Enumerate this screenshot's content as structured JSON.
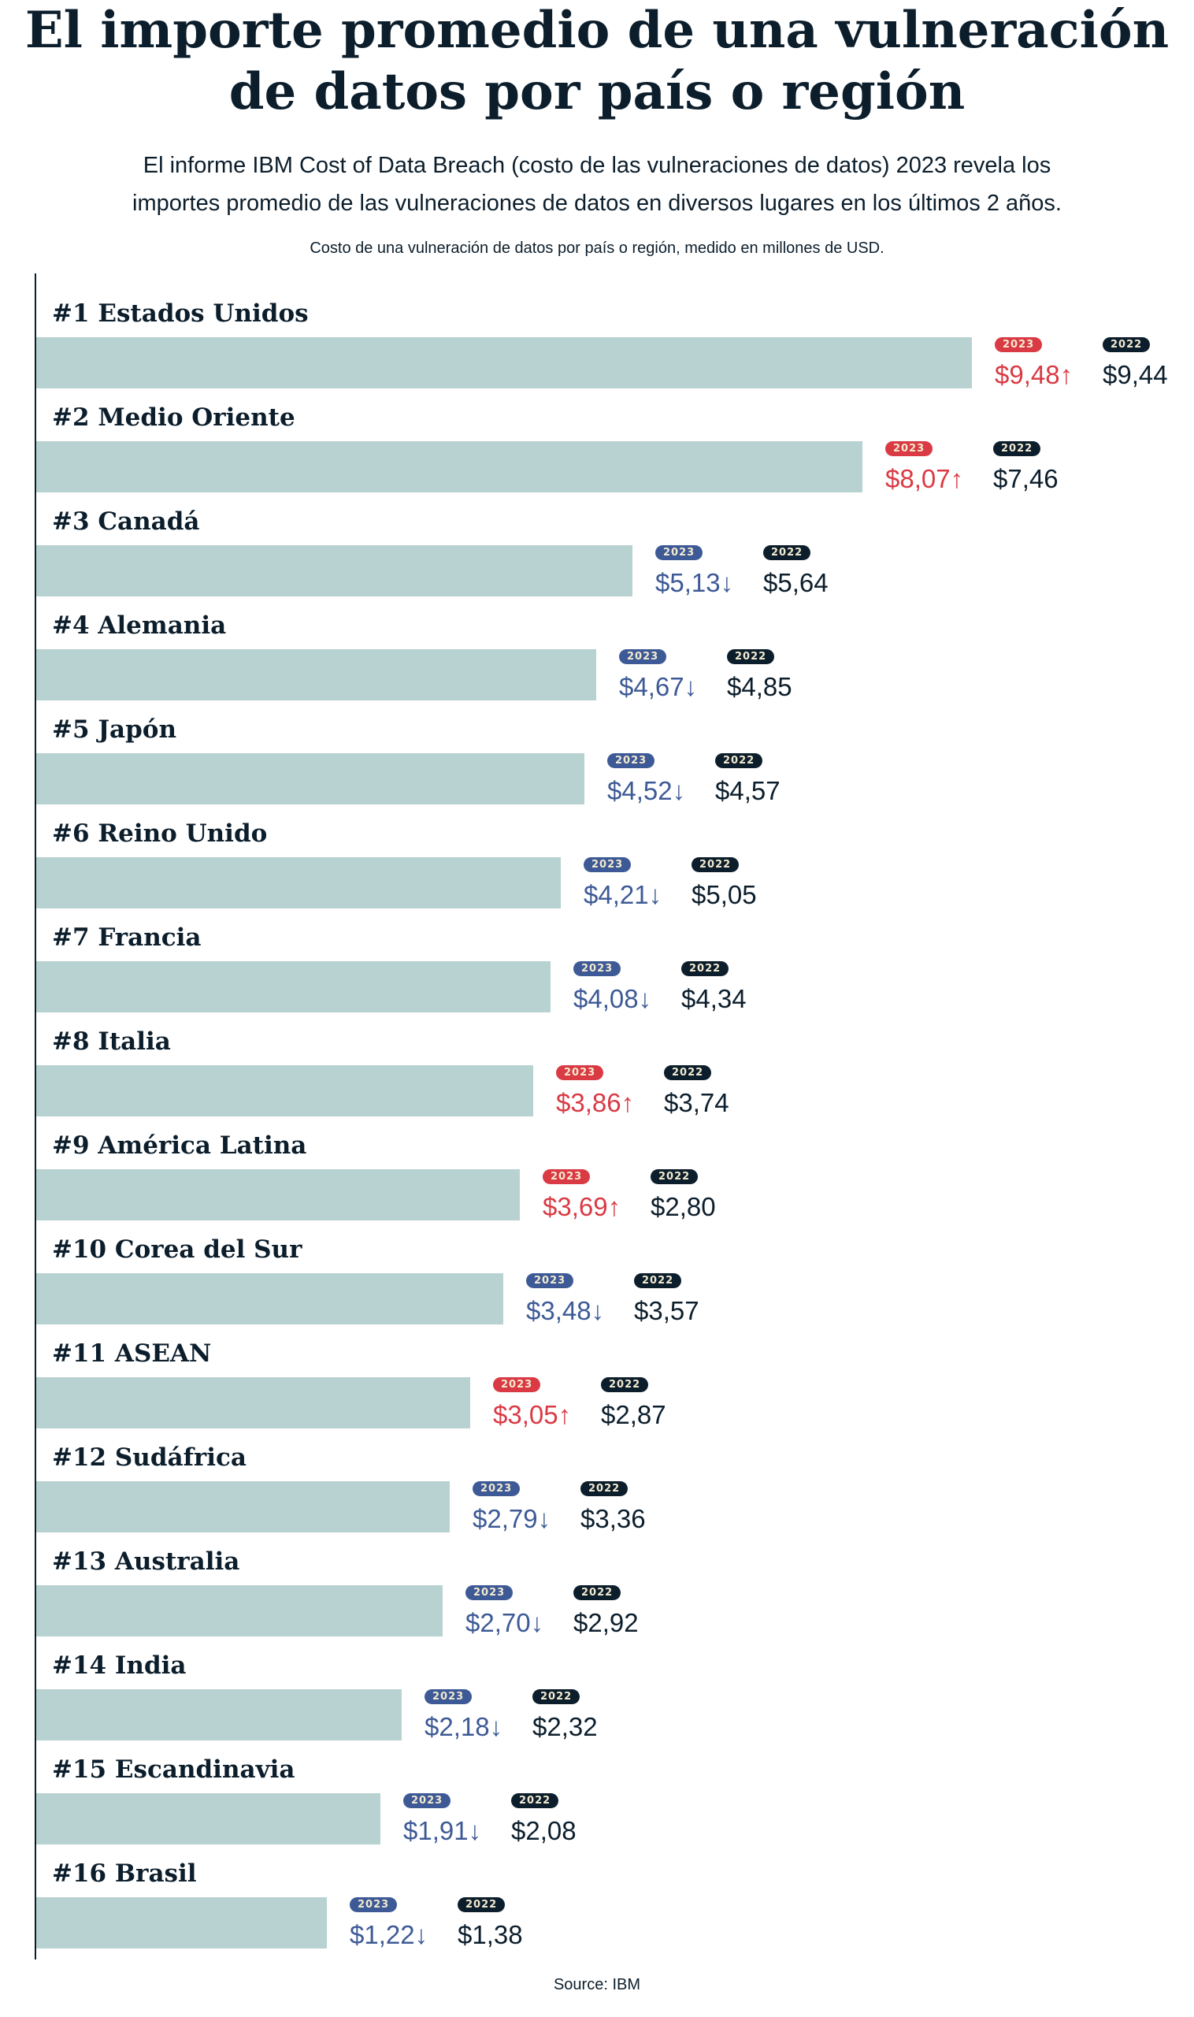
{
  "title_line1": "El importe promedio de una vulneración",
  "title_line2": "de datos por país o región",
  "subtitle_line1": "El informe IBM Cost of Data Breach (costo de las vulneraciones de datos) 2023 revela los",
  "subtitle_line2": "importes promedio de las vulneraciones de datos en diversos lugares en los últimos 2 años.",
  "caption": "Costo de una vulneración de datos por país o región, medido en millones de USD.",
  "source": "Source: IBM",
  "colors": {
    "bar": "#b8d2d1",
    "up": "#da3a44",
    "down": "#3d5a96",
    "prior": "#0c1e2c"
  },
  "chart_data": {
    "type": "bar",
    "orientation": "horizontal",
    "unit": "millones de USD",
    "badge_current": "2023",
    "badge_prior": "2022",
    "rows": [
      {
        "label": "#1 Estados Unidos",
        "v2023": 9.48,
        "v2022": 9.44,
        "t2023": "$9,48",
        "t2022": "$9,44",
        "trend": "up"
      },
      {
        "label": "#2 Medio Oriente",
        "v2023": 8.07,
        "v2022": 7.46,
        "t2023": "$8,07",
        "t2022": "$7,46",
        "trend": "up"
      },
      {
        "label": "#3 Canadá",
        "v2023": 5.13,
        "v2022": 5.64,
        "t2023": "$5,13",
        "t2022": "$5,64",
        "trend": "down"
      },
      {
        "label": "#4 Alemania",
        "v2023": 4.67,
        "v2022": 4.85,
        "t2023": "$4,67",
        "t2022": "$4,85",
        "trend": "down"
      },
      {
        "label": "#5 Japón",
        "v2023": 4.52,
        "v2022": 4.57,
        "t2023": "$4,52",
        "t2022": "$4,57",
        "trend": "down"
      },
      {
        "label": "#6 Reino Unido",
        "v2023": 4.21,
        "v2022": 5.05,
        "t2023": "$4,21",
        "t2022": "$5,05",
        "trend": "down"
      },
      {
        "label": "#7 Francia",
        "v2023": 4.08,
        "v2022": 4.34,
        "t2023": "$4,08",
        "t2022": "$4,34",
        "trend": "down"
      },
      {
        "label": "#8 Italia",
        "v2023": 3.86,
        "v2022": 3.74,
        "t2023": "$3,86",
        "t2022": "$3,74",
        "trend": "up"
      },
      {
        "label": "#9 América Latina",
        "v2023": 3.69,
        "v2022": 2.8,
        "t2023": "$3,69",
        "t2022": "$2,80",
        "trend": "up"
      },
      {
        "label": "#10 Corea del Sur",
        "v2023": 3.48,
        "v2022": 3.57,
        "t2023": "$3,48",
        "t2022": "$3,57",
        "trend": "down"
      },
      {
        "label": "#11 ASEAN",
        "v2023": 3.05,
        "v2022": 2.87,
        "t2023": "$3,05",
        "t2022": "$2,87",
        "trend": "up"
      },
      {
        "label": "#12 Sudáfrica",
        "v2023": 2.79,
        "v2022": 3.36,
        "t2023": "$2,79",
        "t2022": "$3,36",
        "trend": "down"
      },
      {
        "label": "#13 Australia",
        "v2023": 2.7,
        "v2022": 2.92,
        "t2023": "$2,70",
        "t2022": "$2,92",
        "trend": "down"
      },
      {
        "label": "#14 India",
        "v2023": 2.18,
        "v2022": 2.32,
        "t2023": "$2,18",
        "t2022": "$2,32",
        "trend": "down"
      },
      {
        "label": "#15 Escandinavia",
        "v2023": 1.91,
        "v2022": 2.08,
        "t2023": "$1,91",
        "t2022": "$2,08",
        "trend": "down"
      },
      {
        "label": "#16 Brasil",
        "v2023": 1.22,
        "v2022": 1.38,
        "t2023": "$1,22",
        "t2022": "$1,38",
        "trend": "down"
      }
    ]
  }
}
